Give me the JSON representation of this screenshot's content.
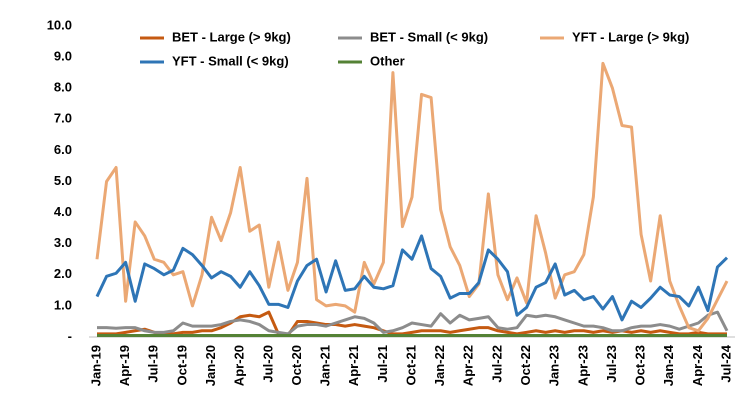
{
  "chart_data": {
    "type": "line",
    "categories": [
      "Jan-19",
      null,
      null,
      "Apr-19",
      null,
      null,
      "Jul-19",
      null,
      null,
      "Oct-19",
      null,
      null,
      "Jan-20",
      null,
      null,
      "Apr-20",
      null,
      null,
      "Jul-20",
      null,
      null,
      "Oct-20",
      null,
      null,
      "Jan-21",
      null,
      null,
      "Apr-21",
      null,
      null,
      "Jul-21",
      null,
      null,
      "Oct-21",
      null,
      null,
      "Jan-22",
      null,
      null,
      "Apr-22",
      null,
      null,
      "Jul-22",
      null,
      null,
      "Oct-22",
      null,
      null,
      "Jan-23",
      null,
      null,
      "Apr-23",
      null,
      null,
      "Jul-23",
      null,
      null,
      "Oct-23",
      null,
      null,
      "Jan-24",
      null,
      null,
      "Apr-24",
      null,
      null,
      "Jul-24"
    ],
    "series": [
      {
        "name": "BET - Large (> 9kg)",
        "color": "#c55a11",
        "values": [
          0.1,
          0.1,
          0.1,
          0.15,
          0.2,
          0.25,
          0.15,
          0.1,
          0.1,
          0.15,
          0.15,
          0.2,
          0.2,
          0.3,
          0.45,
          0.65,
          0.7,
          0.65,
          0.8,
          0.1,
          0.05,
          0.5,
          0.5,
          0.45,
          0.4,
          0.4,
          0.35,
          0.4,
          0.35,
          0.3,
          0.2,
          0.1,
          0.1,
          0.15,
          0.2,
          0.2,
          0.2,
          0.15,
          0.2,
          0.25,
          0.3,
          0.3,
          0.2,
          0.15,
          0.1,
          0.15,
          0.2,
          0.15,
          0.2,
          0.15,
          0.2,
          0.2,
          0.15,
          0.2,
          0.15,
          0.2,
          0.15,
          0.2,
          0.15,
          0.2,
          0.15,
          0.1,
          0.1,
          0.15,
          0.1,
          0.1,
          0.1
        ]
      },
      {
        "name": "BET - Small (< 9kg)",
        "color": "#8c8c8c",
        "values": [
          0.3,
          0.3,
          0.28,
          0.3,
          0.3,
          0.2,
          0.15,
          0.15,
          0.2,
          0.45,
          0.35,
          0.35,
          0.35,
          0.4,
          0.5,
          0.55,
          0.5,
          0.4,
          0.2,
          0.15,
          0.1,
          0.35,
          0.4,
          0.4,
          0.35,
          0.45,
          0.55,
          0.65,
          0.6,
          0.45,
          0.15,
          0.2,
          0.3,
          0.45,
          0.4,
          0.35,
          0.75,
          0.45,
          0.7,
          0.55,
          0.6,
          0.65,
          0.3,
          0.25,
          0.3,
          0.7,
          0.65,
          0.7,
          0.65,
          0.55,
          0.45,
          0.35,
          0.35,
          0.3,
          0.2,
          0.2,
          0.3,
          0.35,
          0.35,
          0.4,
          0.35,
          0.25,
          0.35,
          0.45,
          0.7,
          0.8,
          0.2
        ]
      },
      {
        "name": "YFT - Large (> 9kg)",
        "color": "#eba874",
        "values": [
          2.5,
          5.0,
          5.45,
          1.15,
          3.7,
          3.25,
          2.5,
          2.4,
          2.0,
          2.1,
          1.0,
          2.0,
          3.85,
          3.1,
          4.0,
          5.45,
          3.4,
          3.6,
          1.6,
          3.05,
          1.5,
          2.4,
          5.1,
          1.2,
          1.0,
          1.05,
          1.0,
          0.8,
          2.4,
          1.7,
          2.4,
          8.5,
          3.55,
          4.5,
          7.8,
          7.7,
          4.1,
          2.9,
          2.3,
          1.3,
          1.7,
          4.6,
          2.0,
          1.2,
          1.9,
          1.1,
          3.9,
          2.7,
          1.25,
          2.0,
          2.1,
          2.65,
          4.5,
          8.8,
          8.0,
          6.8,
          6.75,
          3.3,
          1.8,
          3.9,
          1.8,
          1.0,
          0.3,
          0.2,
          0.6,
          1.2,
          1.8
        ]
      },
      {
        "name": "YFT - Small (< 9kg)",
        "color": "#2e75b6",
        "values": [
          1.3,
          1.95,
          2.05,
          2.4,
          1.15,
          2.35,
          2.2,
          2.0,
          2.15,
          2.85,
          2.65,
          2.3,
          1.9,
          2.1,
          1.95,
          1.6,
          2.1,
          1.65,
          1.05,
          1.05,
          0.95,
          1.8,
          2.3,
          2.5,
          1.45,
          2.45,
          1.5,
          1.55,
          1.95,
          1.6,
          1.55,
          1.65,
          2.8,
          2.5,
          3.25,
          2.2,
          1.95,
          1.25,
          1.4,
          1.4,
          1.75,
          2.8,
          2.5,
          2.1,
          0.7,
          0.95,
          1.6,
          1.75,
          2.35,
          1.35,
          1.5,
          1.2,
          1.3,
          0.9,
          1.3,
          0.55,
          1.15,
          0.95,
          1.25,
          1.6,
          1.35,
          1.3,
          1.0,
          1.6,
          0.85,
          2.25,
          2.55
        ]
      },
      {
        "name": "Other",
        "color": "#548235",
        "values": [
          0.05,
          0.05,
          0.05,
          0.05,
          0.05,
          0.05,
          0.05,
          0.05,
          0.05,
          0.05,
          0.05,
          0.05,
          0.05,
          0.05,
          0.05,
          0.05,
          0.05,
          0.05,
          0.05,
          0.05,
          0.05,
          0.05,
          0.05,
          0.05,
          0.05,
          0.05,
          0.05,
          0.05,
          0.05,
          0.05,
          0.05,
          0.05,
          0.05,
          0.05,
          0.05,
          0.05,
          0.05,
          0.05,
          0.05,
          0.05,
          0.05,
          0.05,
          0.05,
          0.05,
          0.05,
          0.05,
          0.05,
          0.05,
          0.05,
          0.05,
          0.05,
          0.05,
          0.05,
          0.05,
          0.05,
          0.05,
          0.05,
          0.05,
          0.05,
          0.05,
          0.05,
          0.05,
          0.05,
          0.05,
          0.05,
          0.05,
          0.05
        ]
      }
    ],
    "ylim": [
      0,
      10
    ],
    "yticks": [
      {
        "value": 0,
        "label": "-"
      },
      {
        "value": 1,
        "label": "1.0"
      },
      {
        "value": 2,
        "label": "2.0"
      },
      {
        "value": 3,
        "label": "3.0"
      },
      {
        "value": 4,
        "label": "4.0"
      },
      {
        "value": 5,
        "label": "5.0"
      },
      {
        "value": 6,
        "label": "6.0"
      },
      {
        "value": 7,
        "label": "7.0"
      },
      {
        "value": 8,
        "label": "8.0"
      },
      {
        "value": 9,
        "label": "9.0"
      },
      {
        "value": 10,
        "label": "10.0"
      }
    ],
    "legend": "top",
    "grid": false
  }
}
